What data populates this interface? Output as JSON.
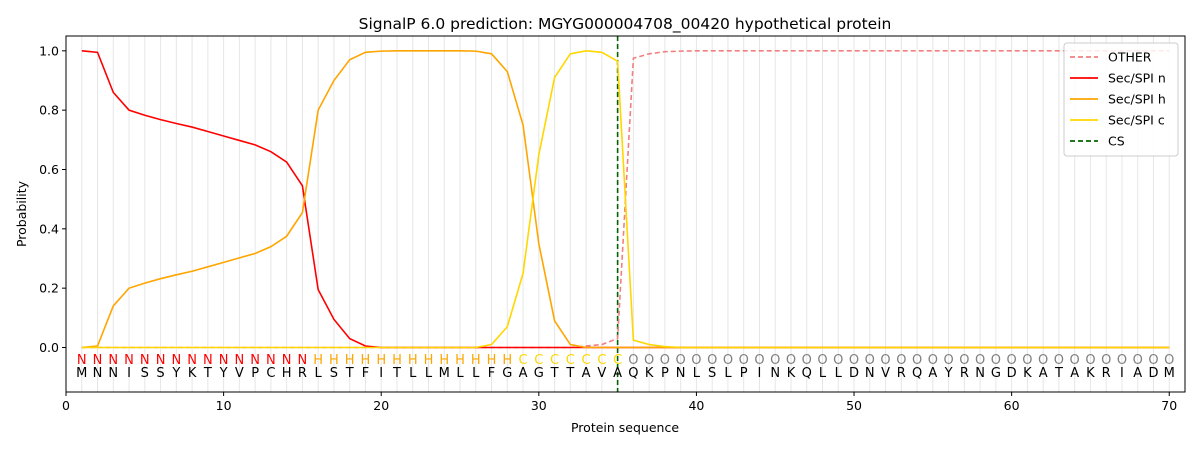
{
  "chart_data": {
    "type": "line",
    "title": "SignalP 6.0 prediction: MGYG000004708_00420 hypothetical protein",
    "xlabel": "Protein sequence",
    "ylabel": "Probability",
    "xlim": [
      0,
      71
    ],
    "ylim": [
      -0.15,
      1.05
    ],
    "x_ticks": [
      0,
      10,
      20,
      30,
      40,
      50,
      60,
      70
    ],
    "y_ticks": [
      0.0,
      0.2,
      0.4,
      0.6,
      0.8,
      1.0
    ],
    "x_tick_labels": [
      "0",
      "10",
      "20",
      "30",
      "40",
      "50",
      "60",
      "70"
    ],
    "y_tick_labels": [
      "0.0",
      "0.2",
      "0.4",
      "0.6",
      "0.8",
      "1.0"
    ],
    "grid": "vertical lines at each residue",
    "legend_position": "top-right",
    "sequence": "MNNISSYKTYVPCHRLSTFITLLMLLFGAGTTAVAQKPNLSLPINKQLLDNVRQAYRNGDKATAKRIADM",
    "labels": "NNNNNNNNNNNNNNNHHHHHHHHHHHHHCCCCCCCOOOOOOOOOOOOOOOOOOOOOOOOOOOOOOOOOOO",
    "label_colors": {
      "N": "#ff0000",
      "H": "#ffa500",
      "C": "#ffd700",
      "O": "#808080"
    },
    "cleavage_site": 35,
    "series": [
      {
        "name": "OTHER",
        "color": "#f08080",
        "style": "dashed",
        "values": [
          0.0,
          0.0,
          0.0,
          0.0,
          0.0,
          0.0,
          0.0,
          0.0,
          0.0,
          0.0,
          0.0,
          0.0,
          0.0,
          0.0,
          0.0,
          0.0,
          0.0,
          0.0,
          0.0,
          0.0,
          0.0,
          0.0,
          0.0,
          0.0,
          0.0,
          0.0,
          0.0,
          0.0,
          0.0,
          0.0,
          0.0,
          0.0,
          0.005,
          0.01,
          0.03,
          0.975,
          0.99,
          0.997,
          0.999,
          1.0,
          1.0,
          1.0,
          1.0,
          1.0,
          1.0,
          1.0,
          1.0,
          1.0,
          1.0,
          1.0,
          1.0,
          1.0,
          1.0,
          1.0,
          1.0,
          1.0,
          1.0,
          1.0,
          1.0,
          1.0,
          1.0,
          1.0,
          1.0,
          1.0,
          1.0,
          1.0,
          1.0,
          1.0,
          1.0,
          1.0
        ]
      },
      {
        "name": "Sec/SPI n",
        "color": "#ff0000",
        "style": "solid",
        "values": [
          1.0,
          0.995,
          0.86,
          0.8,
          0.783,
          0.768,
          0.755,
          0.743,
          0.728,
          0.713,
          0.698,
          0.683,
          0.66,
          0.625,
          0.545,
          0.195,
          0.095,
          0.03,
          0.005,
          0.0,
          0.0,
          0.0,
          0.0,
          0.0,
          0.0,
          0.0,
          0.0,
          0.0,
          0.0,
          0.0,
          0.0,
          0.0,
          0.0,
          0.0,
          0.0,
          0.0,
          0.0,
          0.0,
          0.0,
          0.0,
          0.0,
          0.0,
          0.0,
          0.0,
          0.0,
          0.0,
          0.0,
          0.0,
          0.0,
          0.0,
          0.0,
          0.0,
          0.0,
          0.0,
          0.0,
          0.0,
          0.0,
          0.0,
          0.0,
          0.0,
          0.0,
          0.0,
          0.0,
          0.0,
          0.0,
          0.0,
          0.0,
          0.0,
          0.0,
          0.0
        ]
      },
      {
        "name": "Sec/SPI h",
        "color": "#ffa500",
        "style": "solid",
        "values": [
          0.0,
          0.005,
          0.14,
          0.2,
          0.217,
          0.232,
          0.245,
          0.257,
          0.272,
          0.287,
          0.302,
          0.317,
          0.34,
          0.375,
          0.455,
          0.8,
          0.9,
          0.97,
          0.995,
          0.999,
          1.0,
          1.0,
          1.0,
          1.0,
          1.0,
          0.999,
          0.99,
          0.93,
          0.75,
          0.35,
          0.09,
          0.01,
          0.0,
          0.0,
          0.0,
          0.0,
          0.0,
          0.0,
          0.0,
          0.0,
          0.0,
          0.0,
          0.0,
          0.0,
          0.0,
          0.0,
          0.0,
          0.0,
          0.0,
          0.0,
          0.0,
          0.0,
          0.0,
          0.0,
          0.0,
          0.0,
          0.0,
          0.0,
          0.0,
          0.0,
          0.0,
          0.0,
          0.0,
          0.0,
          0.0,
          0.0,
          0.0,
          0.0,
          0.0,
          0.0
        ]
      },
      {
        "name": "Sec/SPI c",
        "color": "#ffd700",
        "style": "solid",
        "values": [
          0.0,
          0.0,
          0.0,
          0.0,
          0.0,
          0.0,
          0.0,
          0.0,
          0.0,
          0.0,
          0.0,
          0.0,
          0.0,
          0.0,
          0.0,
          0.0,
          0.0,
          0.0,
          0.0,
          0.0,
          0.0,
          0.0,
          0.0,
          0.0,
          0.0,
          0.0,
          0.01,
          0.07,
          0.25,
          0.65,
          0.91,
          0.99,
          1.0,
          0.995,
          0.965,
          0.025,
          0.01,
          0.003,
          0.0,
          0.0,
          0.0,
          0.0,
          0.0,
          0.0,
          0.0,
          0.0,
          0.0,
          0.0,
          0.0,
          0.0,
          0.0,
          0.0,
          0.0,
          0.0,
          0.0,
          0.0,
          0.0,
          0.0,
          0.0,
          0.0,
          0.0,
          0.0,
          0.0,
          0.0,
          0.0,
          0.0,
          0.0,
          0.0,
          0.0,
          0.0
        ]
      }
    ],
    "legend": [
      {
        "name": "OTHER",
        "color": "#f08080",
        "style": "dashed"
      },
      {
        "name": "Sec/SPI n",
        "color": "#ff0000",
        "style": "solid"
      },
      {
        "name": "Sec/SPI h",
        "color": "#ffa500",
        "style": "solid"
      },
      {
        "name": "Sec/SPI c",
        "color": "#ffd700",
        "style": "solid"
      },
      {
        "name": "CS",
        "color": "#006400",
        "style": "dashed"
      }
    ]
  }
}
